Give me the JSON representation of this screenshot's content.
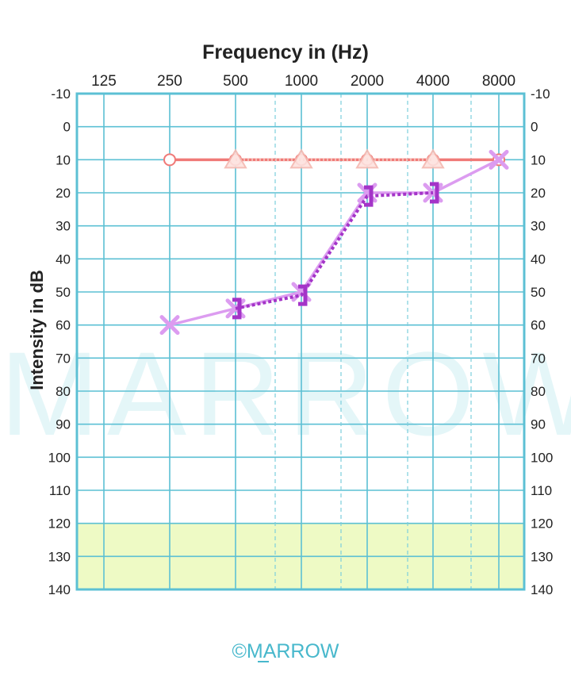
{
  "chart_data": {
    "type": "line",
    "xlabel": "Frequency in (Hz)",
    "ylabel": "Intensity in dB",
    "x_ticks": [
      "125",
      "250",
      "500",
      "1000",
      "2000",
      "4000",
      "8000"
    ],
    "y_ticks": [
      -10,
      0,
      10,
      20,
      30,
      40,
      50,
      60,
      70,
      80,
      90,
      100,
      110,
      120,
      130,
      140
    ],
    "ylim": [
      -10,
      140
    ],
    "y_inverted": true,
    "grid": true,
    "shaded_band": {
      "from": 120,
      "to": 140,
      "color": "#eefac5"
    },
    "series": [
      {
        "x": [
          "250",
          "500",
          "1000",
          "2000",
          "4000",
          "8000"
        ],
        "values": [
          10,
          10,
          10,
          10,
          10,
          10
        ],
        "marker": "circle",
        "line": "solid",
        "color": "#f07a78"
      },
      {
        "x": [
          "500",
          "1000",
          "2000",
          "4000"
        ],
        "values": [
          10,
          10,
          10,
          10
        ],
        "marker": "triangle",
        "line": "dotted",
        "color": "#f4b8b0"
      },
      {
        "x": [
          "250",
          "500",
          "1000",
          "2000",
          "4000",
          "8000"
        ],
        "values": [
          60,
          55,
          50,
          20,
          20,
          10
        ],
        "marker": "x",
        "line": "solid",
        "color": "#dc9cf0"
      },
      {
        "x": [
          "500",
          "1000",
          "2000",
          "4000"
        ],
        "values": [
          55,
          51,
          21,
          20
        ],
        "marker": "bracket",
        "line": "dashed",
        "color": "#a434c8"
      }
    ]
  },
  "watermark": "MARROW",
  "copyright": "©MARROW",
  "colors": {
    "grid": "#5cc0d4",
    "grid_minor": "#7ccedd",
    "band": "#eefac5"
  }
}
